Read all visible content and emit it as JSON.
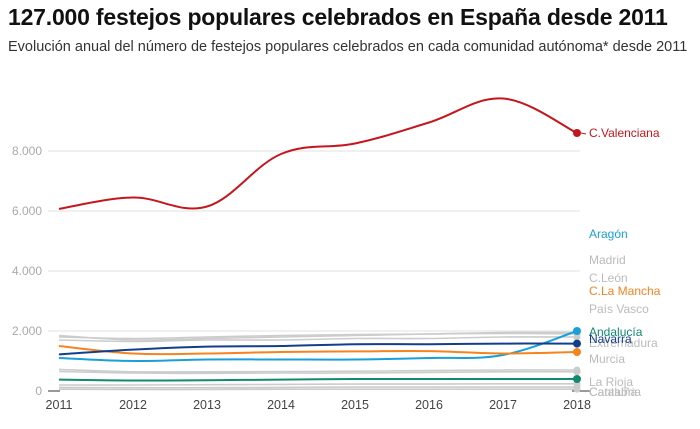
{
  "header": {
    "title": "127.000 festejos populares celebrados en España desde 2011",
    "subtitle": "Evolución anual del número de festejos populares celebrados en cada comunidad autónoma* desde 2011"
  },
  "chart_data": {
    "type": "line",
    "title": "127.000 festejos populares celebrados en España desde 2011",
    "subtitle": "Evolución anual del número de festejos populares celebrados en cada comunidad autónoma* desde 2011",
    "xlabel": "",
    "ylabel": "",
    "x": [
      2011,
      2012,
      2013,
      2014,
      2015,
      2016,
      2017,
      2018
    ],
    "x_tick_labels": [
      "2011",
      "2012",
      "2013",
      "2014",
      "2015",
      "2016",
      "2017",
      "2018"
    ],
    "ylim": [
      0,
      10000
    ],
    "y_ticks": [
      0,
      2000,
      4000,
      6000,
      8000
    ],
    "y_tick_labels": [
      "0",
      "2.000",
      "4.000",
      "6.000",
      "8.000"
    ],
    "grid": true,
    "legend": "direct labels at right end of lines",
    "series": [
      {
        "name": "C.Valenciana",
        "color": "#c4161c",
        "highlight": true,
        "values": [
          6070,
          6450,
          6150,
          7900,
          8250,
          8950,
          9750,
          8600
        ]
      },
      {
        "name": "Aragón",
        "color": "#1aa0d8",
        "highlight": true,
        "values": [
          1100,
          1000,
          1050,
          1050,
          1050,
          1100,
          1200,
          2000
        ]
      },
      {
        "name": "Madrid",
        "color": "#cccccc",
        "highlight": false,
        "values": [
          1850,
          1700,
          1750,
          1800,
          1850,
          1900,
          1950,
          1950
        ]
      },
      {
        "name": "C.León",
        "color": "#cccccc",
        "highlight": false,
        "values": [
          1800,
          1750,
          1800,
          1850,
          1880,
          1900,
          1920,
          1900
        ]
      },
      {
        "name": "C.La Mancha",
        "color": "#f5841f",
        "highlight": true,
        "values": [
          1500,
          1250,
          1250,
          1300,
          1320,
          1330,
          1250,
          1300
        ]
      },
      {
        "name": "País Vasco",
        "color": "#cccccc",
        "highlight": false,
        "values": [
          1700,
          1650,
          1700,
          1700,
          1750,
          1750,
          1800,
          1800
        ]
      },
      {
        "name": "Andalucía",
        "color": "#13896f",
        "highlight": true,
        "values": [
          380,
          350,
          360,
          380,
          400,
          400,
          400,
          400
        ]
      },
      {
        "name": "Navarra",
        "color": "#123f8c",
        "highlight": true,
        "values": [
          1220,
          1380,
          1480,
          1500,
          1560,
          1560,
          1580,
          1580
        ]
      },
      {
        "name": "Extremadura",
        "color": "#cccccc",
        "highlight": false,
        "values": [
          720,
          640,
          640,
          650,
          660,
          680,
          700,
          700
        ]
      },
      {
        "name": "Murcia",
        "color": "#cccccc",
        "highlight": false,
        "values": [
          650,
          600,
          590,
          600,
          600,
          620,
          640,
          640
        ]
      },
      {
        "name": "La Rioja",
        "color": "#cccccc",
        "highlight": false,
        "values": [
          200,
          200,
          210,
          220,
          230,
          230,
          240,
          240
        ]
      },
      {
        "name": "Cantabria",
        "color": "#cccccc",
        "highlight": false,
        "values": [
          120,
          110,
          110,
          120,
          130,
          130,
          130,
          130
        ]
      },
      {
        "name": "Cataluña",
        "color": "#cccccc",
        "highlight": false,
        "values": [
          60,
          50,
          50,
          60,
          60,
          60,
          60,
          60
        ]
      }
    ],
    "end_labels": [
      {
        "name": "C.Valenciana",
        "color": "#c4161c"
      },
      {
        "name": "Aragón",
        "color": "#1aa0d8"
      },
      {
        "name": "Madrid",
        "color": "#bbbbbb"
      },
      {
        "name": "C.León",
        "color": "#bbbbbb"
      },
      {
        "name": "C.La Mancha",
        "color": "#f5841f"
      },
      {
        "name": "País Vasco",
        "color": "#bbbbbb"
      },
      {
        "name": "Andalucía",
        "color": "#13896f"
      },
      {
        "name": "Extremadura",
        "color": "#bbbbbb"
      },
      {
        "name": "Navarra",
        "color": "#123f8c"
      },
      {
        "name": "Murcia",
        "color": "#bbbbbb"
      },
      {
        "name": "La Rioja",
        "color": "#bbbbbb"
      },
      {
        "name": "Cantabria",
        "color": "#bbbbbb"
      },
      {
        "name": "Cataluña",
        "color": "#bbbbbb"
      }
    ]
  }
}
